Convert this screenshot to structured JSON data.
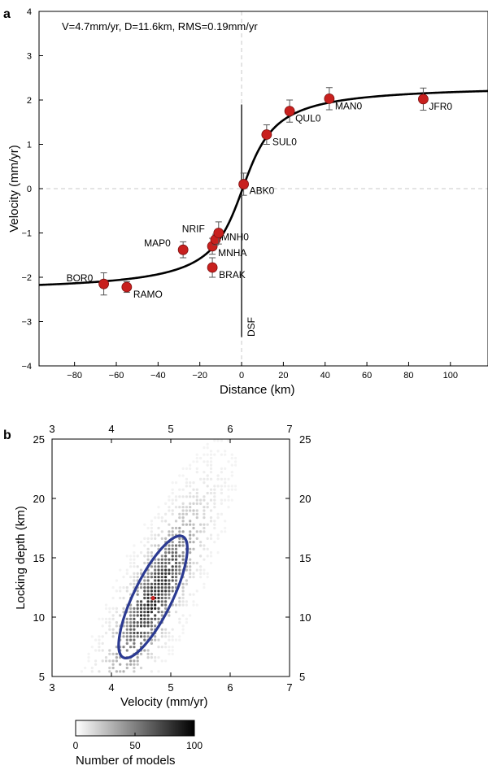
{
  "panel_a": {
    "label": "a",
    "annotation": "V=4.7mm/yr, D=11.6km, RMS=0.19mm/yr",
    "fault_label": "DSF",
    "xlabel": "Distance (km)",
    "ylabel": "Velocity (mm/yr)"
  },
  "panel_b": {
    "label": "b",
    "xlabel": "Velocity (mm/yr)",
    "ylabel": "Locking depth (km)",
    "colorbar": {
      "label": "Number of models",
      "ticks": [
        "0",
        "50",
        "100"
      ],
      "range": [
        0,
        100
      ]
    },
    "ellipse_color": "#2b3a92",
    "best_fit_color": "#cc2222"
  },
  "chart_data": [
    {
      "type": "scatter",
      "title": "",
      "xlabel": "Distance (km)",
      "ylabel": "Velocity (mm/yr)",
      "xlim": [
        -97,
        118
      ],
      "ylim": [
        -4,
        4
      ],
      "xticks": [
        -80,
        -60,
        -40,
        -20,
        0,
        20,
        40,
        60,
        80,
        100
      ],
      "yticks": [
        -4,
        -3,
        -2,
        -1,
        0,
        1,
        2,
        3,
        4
      ],
      "grid": false,
      "marker_color": "#c8201e",
      "curve": {
        "name": "V=4.7mm/yr, D=11.6km",
        "slip_rate": 4.7,
        "locking_depth": 11.6,
        "x_offset": 0.5,
        "y_offset": 0.0
      },
      "points": [
        {
          "name": "BOR0",
          "x": -66,
          "y": -2.15,
          "err": 0.25
        },
        {
          "name": "RAMO",
          "x": -55,
          "y": -2.22,
          "err": 0.12
        },
        {
          "name": "MAP0",
          "x": -28,
          "y": -1.38,
          "err": 0.18
        },
        {
          "name": "BRAK",
          "x": -14,
          "y": -1.78,
          "err": 0.22
        },
        {
          "name": "MNHA",
          "x": -14,
          "y": -1.3,
          "err": 0.18
        },
        {
          "name": "MNH0",
          "x": -12.5,
          "y": -1.15,
          "err": 0.12
        },
        {
          "name": "NRIF",
          "x": -11,
          "y": -1.0,
          "err": 0.25
        },
        {
          "name": "ABK0",
          "x": 1,
          "y": 0.1,
          "err": 0.25
        },
        {
          "name": "SUL0",
          "x": 12,
          "y": 1.22,
          "err": 0.22
        },
        {
          "name": "QUL0",
          "x": 23,
          "y": 1.75,
          "err": 0.25
        },
        {
          "name": "MAN0",
          "x": 42,
          "y": 2.03,
          "err": 0.25
        },
        {
          "name": "JFR0",
          "x": 87,
          "y": 2.02,
          "err": 0.25
        }
      ]
    },
    {
      "type": "heatmap",
      "title": "",
      "xlabel": "Velocity (mm/yr)",
      "ylabel": "Locking depth (km)",
      "xlim": [
        3,
        7
      ],
      "ylim": [
        5,
        25
      ],
      "xticks": [
        3,
        4,
        5,
        6,
        7
      ],
      "yticks": [
        5,
        10,
        15,
        20,
        25
      ],
      "color_range": [
        0,
        100
      ],
      "best_fit": {
        "velocity": 4.7,
        "depth": 11.6
      },
      "confidence_ellipse": {
        "center": [
          4.7,
          11.7
        ],
        "axis_end_1": [
          5.2,
          16.8
        ],
        "axis_end_2": [
          4.33,
          6.6
        ],
        "minor_end": [
          4.37,
          12.0
        ]
      }
    }
  ]
}
